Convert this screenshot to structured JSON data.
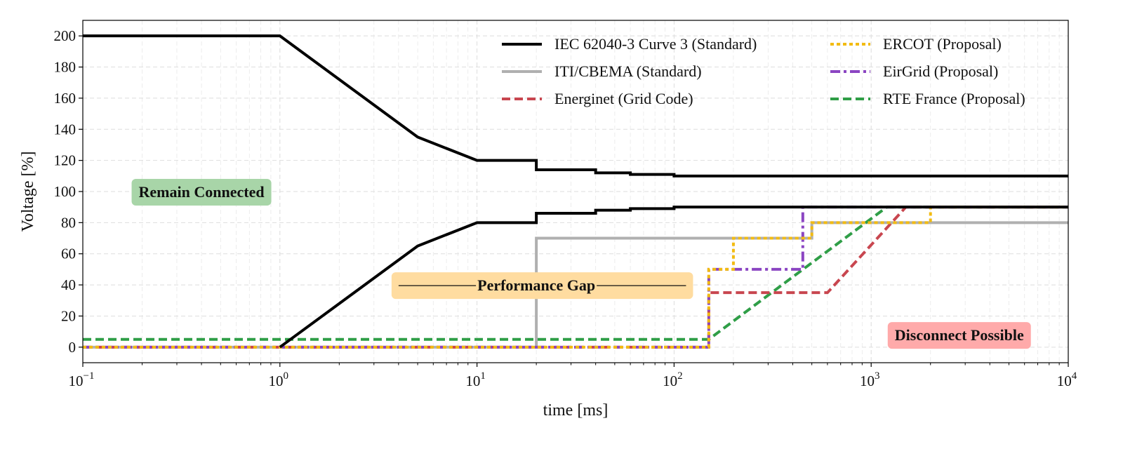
{
  "chart_data": {
    "type": "line",
    "xlabel": "time [ms]",
    "ylabel": "Voltage [%]",
    "xscale": "log",
    "xlim": [
      0.1,
      10000
    ],
    "ylim": [
      -10,
      210
    ],
    "x_ticks": [
      {
        "value": 0.1,
        "base": "10",
        "exp": "−1"
      },
      {
        "value": 1,
        "base": "10",
        "exp": "0"
      },
      {
        "value": 10,
        "base": "10",
        "exp": "1"
      },
      {
        "value": 100,
        "base": "10",
        "exp": "2"
      },
      {
        "value": 1000,
        "base": "10",
        "exp": "3"
      },
      {
        "value": 10000,
        "base": "10",
        "exp": "4"
      }
    ],
    "y_ticks": [
      0,
      20,
      40,
      60,
      80,
      100,
      120,
      140,
      160,
      180,
      200
    ],
    "grid": true,
    "legend_position": "top-right",
    "series": [
      {
        "name": "IEC 62040-3 Curve 3 (Standard)",
        "color": "#000000",
        "style": "solid",
        "x": [
          0.1,
          1,
          5,
          10,
          20,
          20,
          40,
          40,
          60,
          60,
          100,
          100,
          10000
        ],
        "y": [
          200,
          200,
          135,
          120,
          120,
          114,
          114,
          112,
          112,
          111,
          111,
          110,
          110
        ]
      },
      {
        "name": "",
        "color": "#000000",
        "style": "solid",
        "x": [
          1,
          5,
          10,
          20,
          20,
          40,
          40,
          60,
          60,
          100,
          100,
          10000
        ],
        "y": [
          0,
          65,
          80,
          80,
          86,
          86,
          88,
          88,
          89,
          89,
          90,
          90
        ]
      },
      {
        "name": "ITI/CBEMA (Standard)",
        "color": "#b0b0b0",
        "style": "solid",
        "x": [
          0.1,
          20,
          20,
          500,
          500,
          10000
        ],
        "y": [
          0,
          0,
          70,
          70,
          80,
          80
        ]
      },
      {
        "name": "Energinet (Grid Code)",
        "color": "#c8464f",
        "style": "dashed",
        "x": [
          0.1,
          150,
          150,
          600,
          1500,
          10000
        ],
        "y": [
          0,
          0,
          35,
          35,
          90,
          90
        ]
      },
      {
        "name": "ERCOT (Proposal)",
        "color": "#f2bb12",
        "style": "dotted",
        "x": [
          0.1,
          150,
          150,
          200,
          200,
          500,
          500,
          2000,
          2000,
          10000
        ],
        "y": [
          0,
          0,
          50,
          50,
          70,
          70,
          80,
          80,
          90,
          90
        ]
      },
      {
        "name": "EirGrid (Proposal)",
        "color": "#8b45c2",
        "style": "dashdot",
        "x": [
          0.1,
          150,
          150,
          450,
          450,
          10000
        ],
        "y": [
          0,
          0,
          50,
          50,
          90,
          90
        ]
      },
      {
        "name": "RTE France (Proposal)",
        "color": "#2f9e47",
        "style": "dashed",
        "x": [
          0.1,
          150,
          150,
          1200,
          10000
        ],
        "y": [
          5,
          5,
          5,
          90,
          90
        ]
      }
    ],
    "annotations": [
      {
        "text": "Remain Connected",
        "x": 0.4,
        "y": 100,
        "bg": "#a8d5a8"
      },
      {
        "text": "Performance Gap",
        "x": 20,
        "y": 40,
        "bg": "#ffdca0",
        "line": [
          4,
          115
        ]
      },
      {
        "text": "Disconnect Possible",
        "x": 2800,
        "y": 8,
        "bg": "#ffaaaa"
      }
    ]
  }
}
